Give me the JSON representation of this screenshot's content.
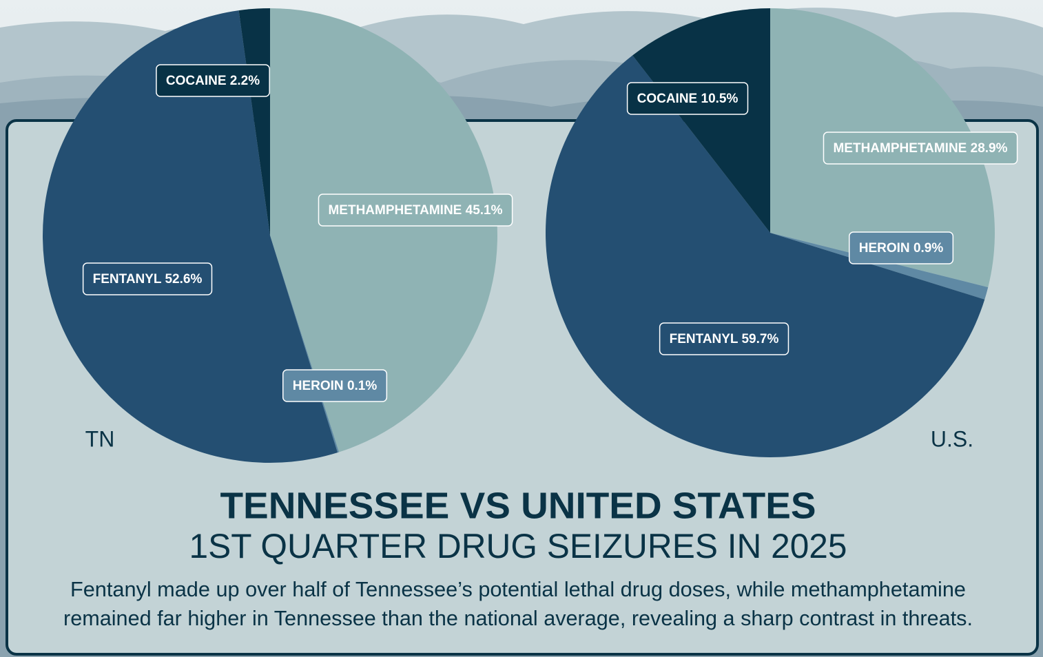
{
  "header": {
    "title": "TENNESSEE VS UNITED STATES",
    "subtitle": "1ST QUARTER DRUG SEIZURES IN 2025",
    "description": [
      "Fentanyl made up over half of Tennessee’s potential lethal drug doses, while methamphetamine",
      "remained far higher in Tennessee than the national average, revealing a sharp contrast in threats."
    ]
  },
  "chart_data": [
    {
      "type": "pie",
      "label": "TN",
      "categories": [
        "METHAMPHETAMINE",
        "HEROIN",
        "FENTANYL",
        "COCAINE"
      ],
      "values": [
        45.1,
        0.1,
        52.6,
        2.2
      ],
      "value_labels": [
        "45.1%",
        "0.1%",
        "52.6%",
        "2.2%"
      ],
      "colors": [
        "#8fb3b4",
        "#5f89a4",
        "#244f72",
        "#083246"
      ]
    },
    {
      "type": "pie",
      "label": "U.S.",
      "categories": [
        "METHAMPHETAMINE",
        "HEROIN",
        "FENTANYL",
        "COCAINE"
      ],
      "values": [
        28.9,
        0.9,
        59.7,
        10.5
      ],
      "value_labels": [
        "28.9%",
        "0.9%",
        "59.7%",
        "10.5%"
      ],
      "colors": [
        "#8fb3b4",
        "#5f89a4",
        "#244f72",
        "#083246"
      ]
    }
  ]
}
